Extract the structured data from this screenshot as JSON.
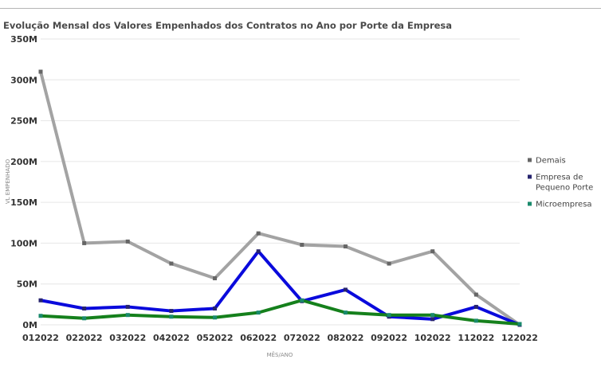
{
  "chart_data": {
    "type": "line",
    "title": "Evolução Mensal dos Valores Empenhados dos Contratos no Ano por Porte da Empresa",
    "xlabel": "MÊS/ANO",
    "ylabel": "VL EMPENHADO",
    "categories": [
      "012022",
      "022022",
      "032022",
      "042022",
      "052022",
      "062022",
      "072022",
      "082022",
      "092022",
      "102022",
      "112022",
      "122022"
    ],
    "ylim": [
      0,
      350
    ],
    "yticks": [
      {
        "value": 0,
        "label": "0M"
      },
      {
        "value": 50,
        "label": "50M"
      },
      {
        "value": 100,
        "label": "100M"
      },
      {
        "value": 150,
        "label": "150M"
      },
      {
        "value": 200,
        "label": "200M"
      },
      {
        "value": 250,
        "label": "250M"
      },
      {
        "value": 300,
        "label": "300M"
      },
      {
        "value": 350,
        "label": "350M"
      }
    ],
    "grid": true,
    "legend_position": "right",
    "series": [
      {
        "name": "Demais",
        "line_color": "#a3a3a3",
        "marker_color": "#666666",
        "values": [
          310,
          100,
          102,
          75,
          57,
          112,
          98,
          96,
          75,
          90,
          37,
          0
        ]
      },
      {
        "name": "Empresa de Pequeno Porte",
        "line_color": "#0a0adc",
        "marker_color": "#27246e",
        "values": [
          30,
          20,
          22,
          17,
          20,
          90,
          29,
          43,
          10,
          7,
          22,
          0
        ]
      },
      {
        "name": "Microempresa",
        "line_color": "#15801c",
        "marker_color": "#1a8a6c",
        "values": [
          11,
          8,
          12,
          10,
          9,
          15,
          30,
          15,
          12,
          12,
          5,
          1
        ]
      }
    ]
  }
}
